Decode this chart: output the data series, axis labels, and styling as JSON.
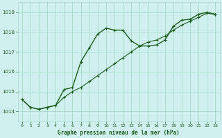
{
  "title": "Graphe pression niveau de la mer (hPa)",
  "background_color": "#cff0ee",
  "grid_color": "#aaddcc",
  "line_color": "#1a5c1a",
  "xlim": [
    -0.5,
    23.5
  ],
  "ylim": [
    1013.5,
    1019.5
  ],
  "yticks": [
    1014,
    1015,
    1016,
    1017,
    1018,
    1019
  ],
  "xticks": [
    0,
    1,
    2,
    3,
    4,
    5,
    6,
    7,
    8,
    9,
    10,
    11,
    12,
    13,
    14,
    15,
    16,
    17,
    18,
    19,
    20,
    21,
    22,
    23
  ],
  "xticklabels": [
    "0",
    "1",
    "2",
    "3",
    "4",
    "5",
    "6",
    "7",
    "8",
    "9",
    "10",
    "11",
    "12",
    "13",
    "14",
    "15",
    "16",
    "17",
    "18",
    "19",
    "20",
    "21",
    "22",
    "23"
  ],
  "series1_x": [
    0,
    1,
    2,
    3,
    4,
    5,
    6,
    7,
    8,
    9,
    10,
    11,
    12,
    13,
    14,
    15,
    16,
    17,
    18,
    19,
    20,
    21,
    22,
    23
  ],
  "series1_y": [
    1014.6,
    1014.2,
    1014.1,
    1014.2,
    1014.3,
    1015.1,
    1015.2,
    1016.5,
    1017.2,
    1017.9,
    1018.2,
    1018.1,
    1018.1,
    1017.55,
    1017.3,
    1017.3,
    1017.35,
    1017.6,
    1018.3,
    1018.6,
    1018.65,
    1018.9,
    1019.0,
    1018.9
  ],
  "series2_x": [
    0,
    1,
    2,
    3,
    4,
    5,
    6,
    7,
    8,
    9,
    10,
    11,
    12,
    13,
    14,
    15,
    16,
    17,
    18,
    19,
    20,
    21,
    22,
    23
  ],
  "series2_y": [
    1014.6,
    1014.2,
    1014.1,
    1014.2,
    1014.3,
    1014.7,
    1015.0,
    1015.2,
    1015.5,
    1015.8,
    1016.1,
    1016.4,
    1016.7,
    1017.0,
    1017.3,
    1017.5,
    1017.6,
    1017.8,
    1018.1,
    1018.35,
    1018.55,
    1018.75,
    1018.95,
    1018.9
  ]
}
